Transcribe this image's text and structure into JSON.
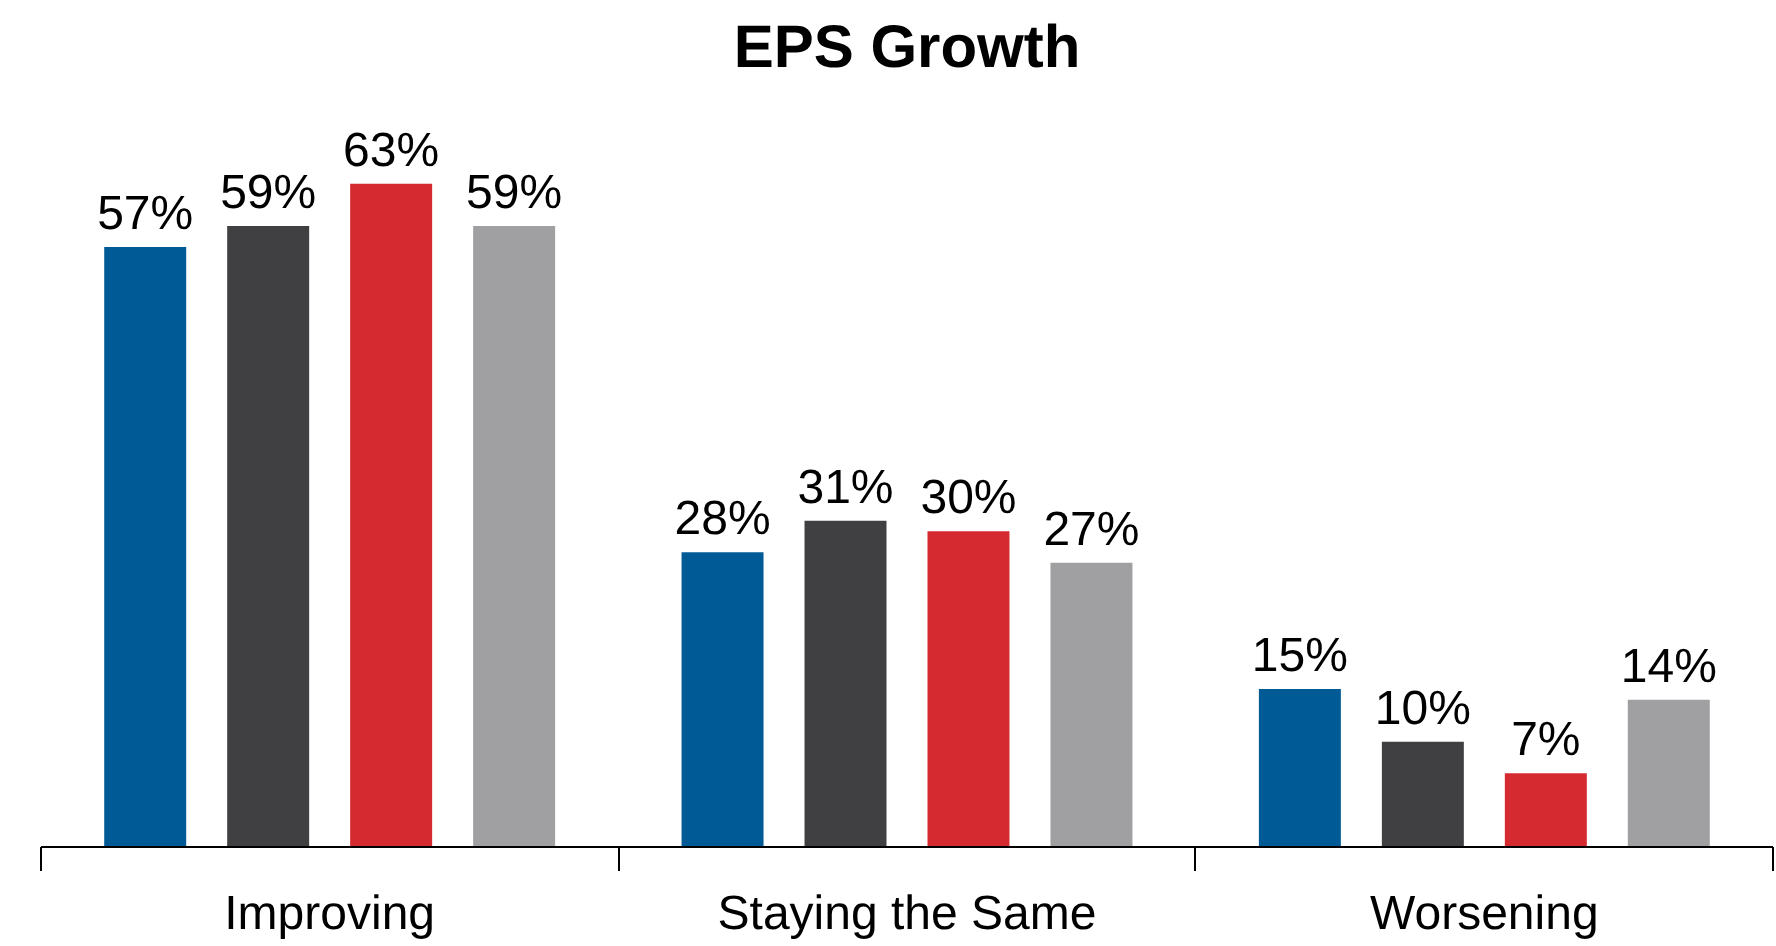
{
  "chart_data": {
    "type": "bar",
    "title": "EPS Growth",
    "categories": [
      "Improving",
      "Staying the Same",
      "Worsening"
    ],
    "series": [
      {
        "color": "#005a96",
        "values": [
          57,
          28,
          15
        ],
        "value_labels": [
          "57%",
          "28%",
          "15%"
        ]
      },
      {
        "color": "#404042",
        "values": [
          59,
          31,
          10
        ],
        "value_labels": [
          "59%",
          "31%",
          "10%"
        ]
      },
      {
        "color": "#d42a30",
        "values": [
          63,
          30,
          7
        ],
        "value_labels": [
          "63%",
          "30%",
          "7%"
        ]
      },
      {
        "color": "#a0a0a2",
        "values": [
          59,
          27,
          14
        ],
        "value_labels": [
          "59%",
          "27%",
          "14%"
        ]
      }
    ],
    "grid": false
  }
}
